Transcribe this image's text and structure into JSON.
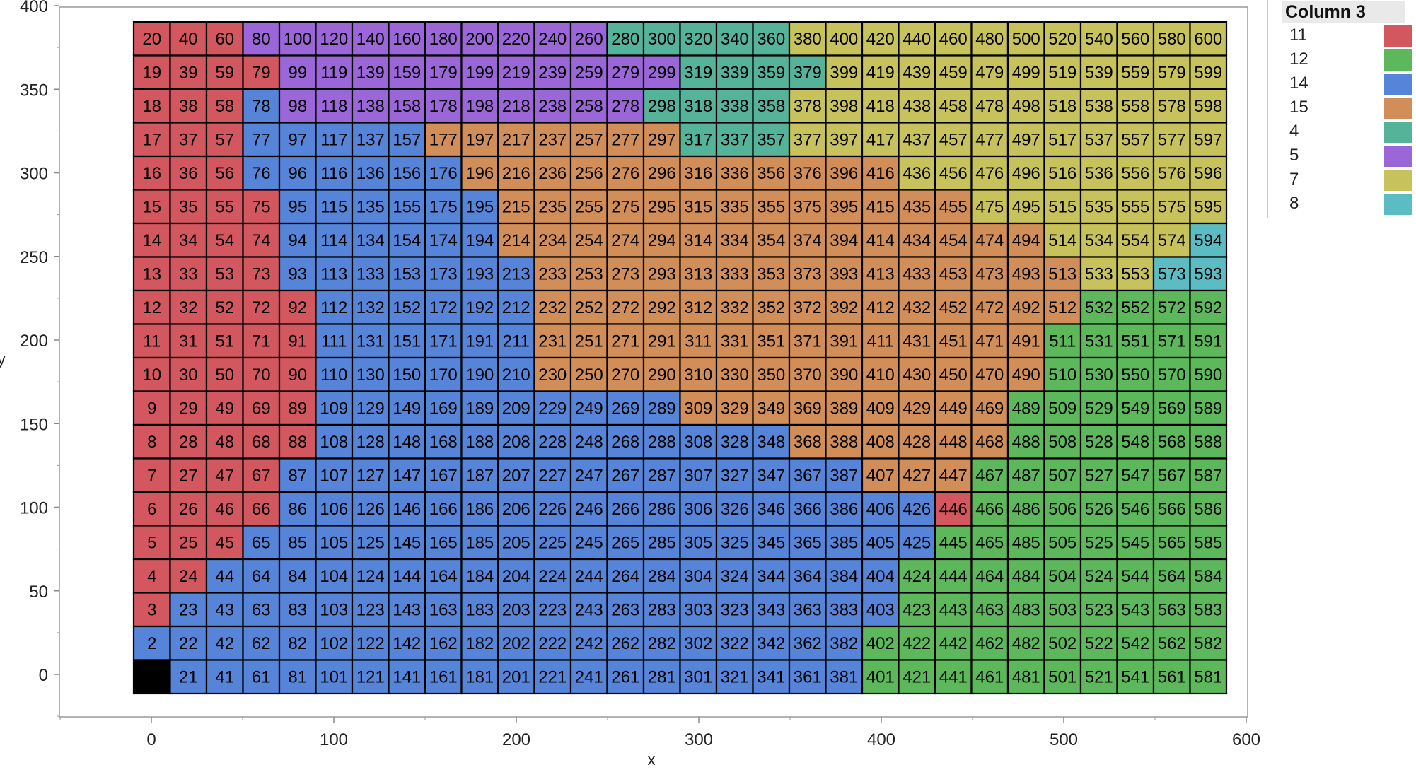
{
  "chart_data": {
    "type": "heatmap",
    "xlabel": "x",
    "ylabel": "y",
    "xlim": [
      -50,
      600
    ],
    "ylim": [
      -20,
      400
    ],
    "x_ticks": [
      0,
      100,
      200,
      300,
      400,
      500,
      600
    ],
    "y_ticks": [
      0,
      50,
      100,
      150,
      200,
      250,
      300,
      350,
      400
    ],
    "grid": false,
    "legend_position": "top-right",
    "legend": {
      "title": "Column 3",
      "entries": [
        {
          "label": "11",
          "color": "#d3575f"
        },
        {
          "label": "12",
          "color": "#5cb85a"
        },
        {
          "label": "14",
          "color": "#5684d8"
        },
        {
          "label": "15",
          "color": "#d28e58"
        },
        {
          "label": "4",
          "color": "#55b39a"
        },
        {
          "label": "5",
          "color": "#9b66d8"
        },
        {
          "label": "7",
          "color": "#c8c25c"
        },
        {
          "label": "8",
          "color": "#5bbcc4"
        }
      ]
    },
    "grid_cols": 30,
    "grid_rows": 20,
    "x_values": [
      0,
      20,
      40,
      60,
      80,
      100,
      120,
      140,
      160,
      180,
      200,
      220,
      240,
      260,
      280,
      300,
      320,
      340,
      360,
      380,
      400,
      420,
      440,
      460,
      480,
      500,
      520,
      540,
      560,
      580
    ],
    "y_values": [
      0,
      19,
      38,
      57,
      76,
      95,
      114,
      133,
      152,
      171,
      190,
      209,
      228,
      247,
      266,
      285,
      304,
      323,
      342,
      361
    ],
    "selected_cell": "1",
    "cell_numbers_note": "cell number = column*20 + row + 1",
    "categories_by_row_top_to_bottom": [
      "11,11,11,5,5,5,5,5,5,5,5,5,5,4,4,4,4,4,7,7,7,7,7,7,7,7,7,7,7,7",
      "11,11,11,11,5,5,5,5,5,5,5,5,5,5,5,4,4,4,4,7,7,7,7,7,7,7,7,7,7,7",
      "11,11,11,14,5,5,5,5,5,5,5,5,5,5,4,4,4,4,7,7,7,7,7,7,7,7,7,7,7,7",
      "11,11,11,14,14,14,14,14,15,15,15,15,15,15,15,4,4,4,7,7,7,7,7,7,7,7,7,7,7,7",
      "11,11,11,14,14,14,14,14,14,15,15,15,15,15,15,15,15,15,15,15,15,7,7,7,7,7,7,7,7,7",
      "11,11,11,11,14,14,14,14,14,14,15,15,15,15,15,15,15,15,15,15,15,15,15,7,7,7,7,7,7,7",
      "11,11,11,11,14,14,14,14,14,14,15,15,15,15,15,15,15,15,15,15,15,15,15,15,15,7,7,7,7,8",
      "11,11,11,11,14,14,14,14,14,14,14,15,15,15,15,15,15,15,15,15,15,15,15,15,15,15,7,7,8,8",
      "11,11,11,11,11,14,14,14,14,14,14,15,15,15,15,15,15,15,15,15,15,15,15,15,15,15,12,12,12,12",
      "11,11,11,11,11,14,14,14,14,14,14,15,15,15,15,15,15,15,15,15,15,15,15,15,15,12,12,12,12,12",
      "11,11,11,11,11,14,14,14,14,14,14,15,15,15,15,15,15,15,15,15,15,15,15,15,15,12,12,12,12,12",
      "11,11,11,11,11,14,14,14,14,14,14,14,14,14,14,15,15,15,15,15,15,15,15,15,12,12,12,12,12,12",
      "11,11,11,11,11,14,14,14,14,14,14,14,14,14,14,14,14,14,15,15,15,15,15,15,12,12,12,12,12,12",
      "11,11,11,11,14,14,14,14,14,14,14,14,14,14,14,14,14,14,14,14,15,15,15,12,12,12,12,12,12,12",
      "11,11,11,11,14,14,14,14,14,14,14,14,14,14,14,14,14,14,14,14,14,14,11,12,12,12,12,12,12,12",
      "11,11,11,14,14,14,14,14,14,14,14,14,14,14,14,14,14,14,14,14,14,14,12,12,12,12,12,12,12,12",
      "11,11,14,14,14,14,14,14,14,14,14,14,14,14,14,14,14,14,14,14,14,12,12,12,12,12,12,12,12,12",
      "11,14,14,14,14,14,14,14,14,14,14,14,14,14,14,14,14,14,14,14,14,12,12,12,12,12,12,12,12,12",
      "14,14,14,14,14,14,14,14,14,14,14,14,14,14,14,14,14,14,14,14,12,12,12,12,12,12,12,12,12,12",
      "14,14,14,14,14,14,14,14,14,14,14,14,14,14,14,14,14,14,14,14,12,12,12,12,12,12,12,12,12,12"
    ]
  }
}
